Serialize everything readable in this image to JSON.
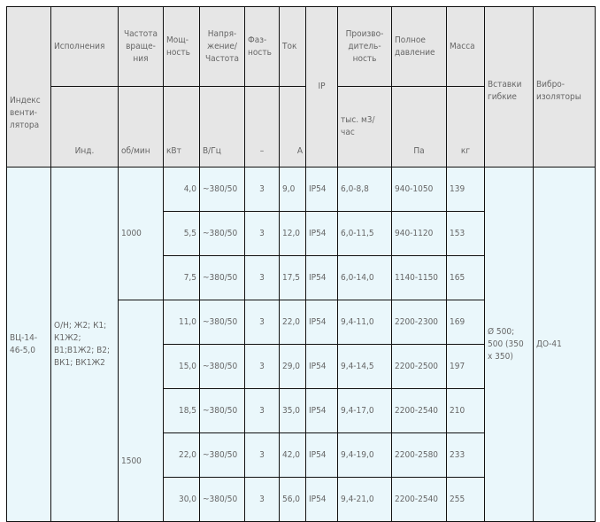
{
  "header": {
    "index": "Индекс венти-лятора",
    "versions": "Исполнения",
    "versions_unit": "Инд.",
    "speed": "Частота враще-ния",
    "speed_unit": "об/мин",
    "power": "Мощ-ность",
    "power_unit": "кВт",
    "voltage": "Напря-жение/ Частота",
    "voltage_unit": "В/Гц",
    "phase": "Фаз-ность",
    "phase_unit": "–",
    "current": "Ток",
    "current_unit": "А",
    "ip": "IP",
    "flow": "Произво-дитель-ность",
    "flow_unit": "тыс. м3/час",
    "pressure": "Полное давление",
    "pressure_unit": "Па",
    "mass": "Масса",
    "mass_unit": "кг",
    "inserts": "Вставки гибкие",
    "isolators": "Вибро-изоляторы"
  },
  "model": {
    "index": "ВЦ-14-46-5,0",
    "versions": "О/Н; Ж2; К1; К1Ж2; В1;В1Ж2; В2; ВК1; ВК1Ж2",
    "inserts": "Ø 500; 500 (350 x 350)",
    "isolators": "ДО-41"
  },
  "speeds": [
    "1000",
    "1500"
  ],
  "rows": [
    {
      "power": "4,0",
      "voltage": "~380/50",
      "phase": "3",
      "current": "9,0",
      "ip": "IP54",
      "flow": "6,0-8,8",
      "pressure": "940-1050",
      "mass": "139"
    },
    {
      "power": "5,5",
      "voltage": "~380/50",
      "phase": "3",
      "current": "12,0",
      "ip": "IP54",
      "flow": "6,0-11,5",
      "pressure": "940-1120",
      "mass": "153"
    },
    {
      "power": "7,5",
      "voltage": "~380/50",
      "phase": "3",
      "current": "17,5",
      "ip": "IP54",
      "flow": "6,0-14,0",
      "pressure": "1140-1150",
      "mass": "165"
    },
    {
      "power": "11,0",
      "voltage": "~380/50",
      "phase": "3",
      "current": "22,0",
      "ip": "IP54",
      "flow": "9,4-11,0",
      "pressure": "2200-2300",
      "mass": "169"
    },
    {
      "power": "15,0",
      "voltage": "~380/50",
      "phase": "3",
      "current": "29,0",
      "ip": "IP54",
      "flow": "9,4-14,5",
      "pressure": "2200-2500",
      "mass": "197"
    },
    {
      "power": "18,5",
      "voltage": "~380/50",
      "phase": "3",
      "current": "35,0",
      "ip": "IP54",
      "flow": "9,4-17,0",
      "pressure": "2200-2540",
      "mass": "210"
    },
    {
      "power": "22,0",
      "voltage": "~380/50",
      "phase": "3",
      "current": "42,0",
      "ip": "IP54",
      "flow": "9,4-19,0",
      "pressure": "2200-2580",
      "mass": "233"
    },
    {
      "power": "30,0",
      "voltage": "~380/50",
      "phase": "3",
      "current": "56,0",
      "ip": "IP54",
      "flow": "9,4-21,0",
      "pressure": "2200-2540",
      "mass": "255"
    }
  ]
}
